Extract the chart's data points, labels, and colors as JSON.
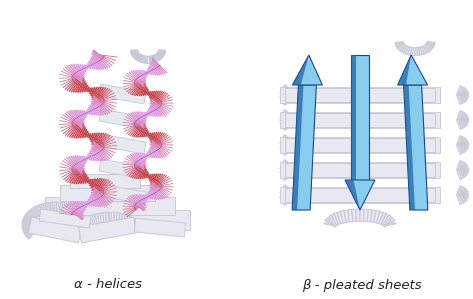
{
  "background_color": "#ffffff",
  "title_left": "α - helices",
  "title_right": "β - pleated sheets",
  "title_fontsize": 9.5,
  "title_color": "#222222",
  "helix_color_front": "#cc66cc",
  "helix_color_mid": "#bb44bb",
  "helix_color_edge": "#993399",
  "helix_color_light": "#e0a0e8",
  "sheet_color_light": "#88ccee",
  "sheet_color_mid": "#4499cc",
  "sheet_color_dark": "#1a5fa0",
  "sheet_color_edge": "#1a4a88",
  "ribbon_color": "#e8e8f0",
  "ribbon_edge": "#c8c8d8",
  "ribbon_shadow": "#d0d0e0",
  "fig_width": 4.73,
  "fig_height": 2.99,
  "dpi": 100
}
